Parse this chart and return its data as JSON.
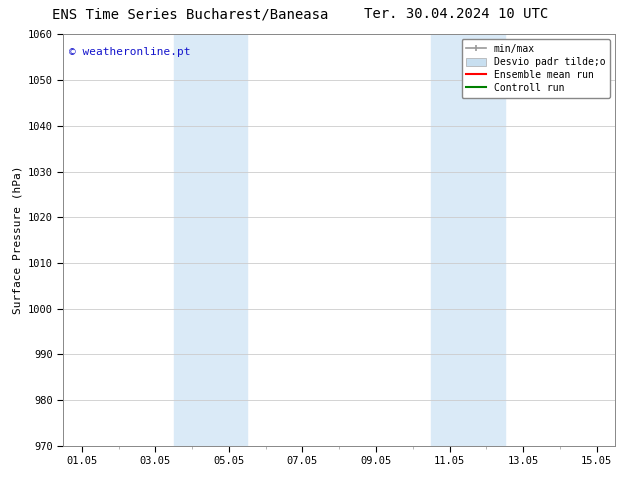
{
  "title_left": "ENS Time Series Bucharest/Baneasa",
  "title_right": "Ter. 30.04.2024 10 UTC",
  "ylabel": "Surface Pressure (hPa)",
  "ylim": [
    970,
    1060
  ],
  "yticks": [
    970,
    980,
    990,
    1000,
    1010,
    1020,
    1030,
    1040,
    1050,
    1060
  ],
  "xtick_labels": [
    "01.05",
    "03.05",
    "05.05",
    "07.05",
    "09.05",
    "11.05",
    "13.05",
    "15.05"
  ],
  "xtick_days": [
    1,
    3,
    5,
    7,
    9,
    11,
    13,
    15
  ],
  "shaded_regions": [
    {
      "start": 3.5,
      "end": 5.5
    },
    {
      "start": 10.5,
      "end": 12.5
    }
  ],
  "shaded_color": "#daeaf7",
  "watermark_text": "© weatheronline.pt",
  "watermark_color": "#1515cc",
  "legend_labels": [
    "min/max",
    "Desvio padr tilde;o",
    "Ensemble mean run",
    "Controll run"
  ],
  "legend_colors_line": [
    "#aaaaaa",
    "#c8dff0",
    "red",
    "green"
  ],
  "bg_color": "#ffffff",
  "grid_color": "#cccccc",
  "title_fontsize": 10,
  "ylabel_fontsize": 8,
  "tick_fontsize": 7.5,
  "watermark_fontsize": 8
}
